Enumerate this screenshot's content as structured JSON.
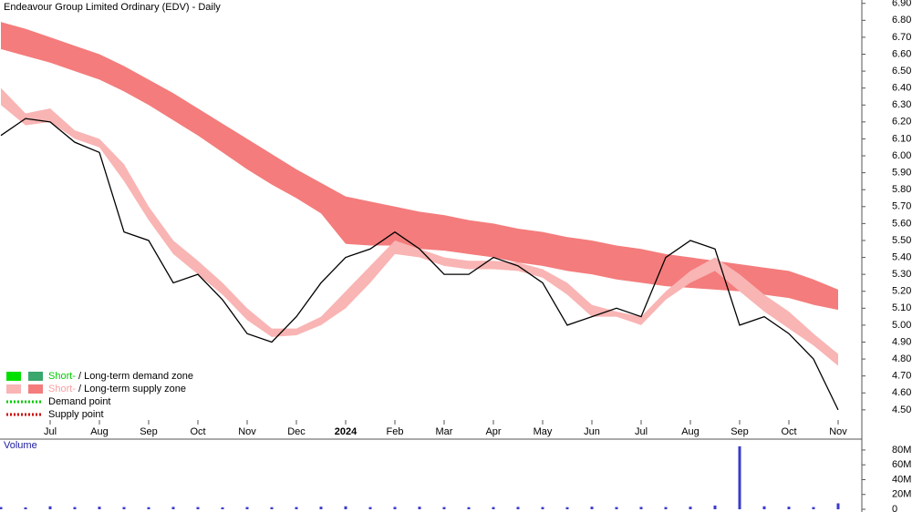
{
  "chart_data": [
    {
      "type": "line",
      "title": "Endeavour Group Limited Ordinary (EDV) - Daily",
      "categories": [
        null,
        null,
        "Jul",
        null,
        "Aug",
        null,
        "Sep",
        null,
        "Oct",
        null,
        "Nov",
        null,
        "Dec",
        null,
        "2024",
        null,
        "Feb",
        null,
        "Mar",
        null,
        "Apr",
        null,
        "May",
        null,
        "Jun",
        null,
        "Jul",
        null,
        "Aug",
        null,
        "Sep",
        null,
        "Oct",
        null,
        "Nov"
      ],
      "series": [
        {
          "color": "#000000",
          "values": [
            6.12,
            6.22,
            6.2,
            6.08,
            6.02,
            5.55,
            5.5,
            5.25,
            5.3,
            5.15,
            4.95,
            4.9,
            5.05,
            5.25,
            5.4,
            5.45,
            5.55,
            5.45,
            5.3,
            5.3,
            5.4,
            5.35,
            5.25,
            5.0,
            5.05,
            5.1,
            5.05,
            5.4,
            5.5,
            5.45,
            5.0,
            5.05,
            4.95,
            4.8,
            4.5
          ]
        }
      ],
      "bands": [
        {
          "color": "#f47c7c",
          "upper": [
            6.79,
            6.75,
            6.7,
            6.65,
            6.6,
            6.53,
            6.45,
            6.37,
            6.28,
            6.19,
            6.1,
            6.01,
            5.92,
            5.84,
            5.76,
            5.73,
            5.7,
            5.67,
            5.65,
            5.62,
            5.6,
            5.57,
            5.55,
            5.52,
            5.5,
            5.47,
            5.45,
            5.42,
            5.4,
            5.38,
            5.36,
            5.34,
            5.32,
            5.27,
            5.21
          ],
          "lower": [
            6.63,
            6.59,
            6.55,
            6.5,
            6.45,
            6.38,
            6.3,
            6.21,
            6.12,
            6.02,
            5.92,
            5.83,
            5.75,
            5.66,
            5.48,
            5.47,
            5.47,
            5.45,
            5.44,
            5.42,
            5.4,
            5.37,
            5.35,
            5.32,
            5.3,
            5.27,
            5.25,
            5.23,
            5.22,
            5.21,
            5.2,
            5.18,
            5.16,
            5.12,
            5.09
          ]
        },
        {
          "color": "#f9b4b4",
          "upper": [
            6.4,
            6.25,
            6.28,
            6.15,
            6.1,
            5.95,
            5.7,
            5.5,
            5.38,
            5.25,
            5.1,
            4.98,
            4.98,
            5.05,
            5.2,
            5.35,
            5.5,
            5.45,
            5.4,
            5.38,
            5.38,
            5.37,
            5.33,
            5.25,
            5.12,
            5.08,
            5.05,
            5.2,
            5.32,
            5.4,
            5.3,
            5.18,
            5.08,
            4.95,
            4.83
          ],
          "lower": [
            6.3,
            6.18,
            6.2,
            6.1,
            6.05,
            5.85,
            5.62,
            5.42,
            5.3,
            5.18,
            5.03,
            4.93,
            4.94,
            5.0,
            5.1,
            5.25,
            5.42,
            5.4,
            5.35,
            5.33,
            5.33,
            5.32,
            5.28,
            5.18,
            5.05,
            5.05,
            5.0,
            5.15,
            5.25,
            5.32,
            5.2,
            5.08,
            4.98,
            4.88,
            4.76
          ]
        }
      ],
      "ylim": [
        4.44,
        6.92
      ],
      "yticks": [
        {
          "value": 4.5,
          "label": "4.50"
        },
        {
          "value": 4.6,
          "label": "4.60"
        },
        {
          "value": 4.7,
          "label": "4.70"
        },
        {
          "value": 4.8,
          "label": "4.80"
        },
        {
          "value": 4.9,
          "label": "4.90"
        },
        {
          "value": 5.0,
          "label": "5.00"
        },
        {
          "value": 5.1,
          "label": "5.10"
        },
        {
          "value": 5.2,
          "label": "5.20"
        },
        {
          "value": 5.3,
          "label": "5.30"
        },
        {
          "value": 5.4,
          "label": "5.40"
        },
        {
          "value": 5.5,
          "label": "5.50"
        },
        {
          "value": 5.6,
          "label": "5.60"
        },
        {
          "value": 5.7,
          "label": "5.70"
        },
        {
          "value": 5.8,
          "label": "5.80"
        },
        {
          "value": 5.9,
          "label": "5.90"
        },
        {
          "value": 6.0,
          "label": "6.00"
        },
        {
          "value": 6.1,
          "label": "6.10"
        },
        {
          "value": 6.2,
          "label": "6.20"
        },
        {
          "value": 6.3,
          "label": "6.30"
        },
        {
          "value": 6.4,
          "label": "6.40"
        },
        {
          "value": 6.5,
          "label": "6.50"
        },
        {
          "value": 6.6,
          "label": "6.60"
        },
        {
          "value": 6.7,
          "label": "6.70"
        },
        {
          "value": 6.8,
          "label": "6.80"
        },
        {
          "value": 6.9,
          "label": "6.90"
        }
      ],
      "legend": [
        {
          "short": "Short-",
          "text": "/ Long-term demand zone",
          "colors": [
            "#00e000",
            "#3aa76d"
          ],
          "short_color": "#00cc00"
        },
        {
          "short": "Short-",
          "text": "/ Long-term supply zone",
          "colors": [
            "#f9b4b4",
            "#f47c7c"
          ],
          "short_color": "#f9a0a0"
        },
        {
          "text": "Demand point",
          "colors": [
            "#00cc00"
          ]
        },
        {
          "text": "Supply point",
          "colors": [
            "#cc0000"
          ]
        }
      ]
    },
    {
      "type": "bar",
      "title": "Volume",
      "color": "#3b3bcc",
      "values": [
        3000000,
        2500000,
        4000000,
        3000000,
        3500000,
        3000000,
        2800000,
        3200000,
        3000000,
        2600000,
        3000000,
        2800000,
        3000000,
        3500000,
        4000000,
        3000000,
        3200000,
        3500000,
        3000000,
        2800000,
        3000000,
        3200000,
        3000000,
        2800000,
        3500000,
        3000000,
        3200000,
        3000000,
        3500000,
        5000000,
        85000000,
        4000000,
        3500000,
        3000000,
        8000000
      ],
      "ylim": [
        0,
        91000000
      ],
      "yticks": [
        {
          "value": 0,
          "label": "0"
        },
        {
          "value": 20000000,
          "label": "20M"
        },
        {
          "value": 40000000,
          "label": "40M"
        },
        {
          "value": 60000000,
          "label": "60M"
        },
        {
          "value": 80000000,
          "label": "80M"
        }
      ]
    }
  ]
}
